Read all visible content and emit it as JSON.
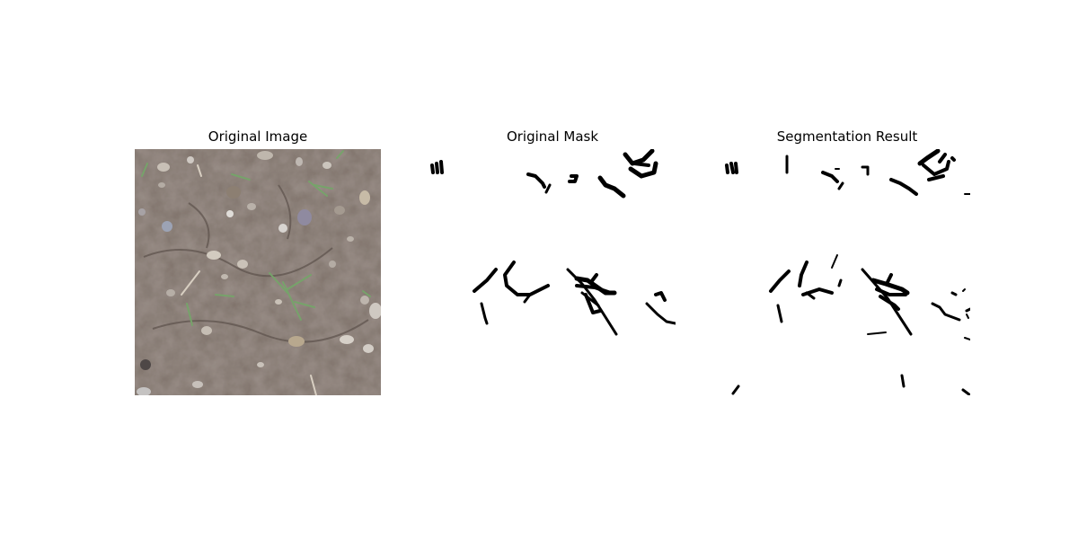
{
  "figure": {
    "panels": [
      {
        "title": "Original Image"
      },
      {
        "title": "Original Mask"
      },
      {
        "title": "Segmentation Result"
      }
    ]
  },
  "colors": {
    "soil": "#7d7068",
    "soil_dark": "#6a5e57",
    "stone": "#b4aca4",
    "stone_dark": "#5a5050",
    "sprout": "#6f9a62",
    "mask_fg": "#000000",
    "mask_bg": "#ffffff"
  }
}
